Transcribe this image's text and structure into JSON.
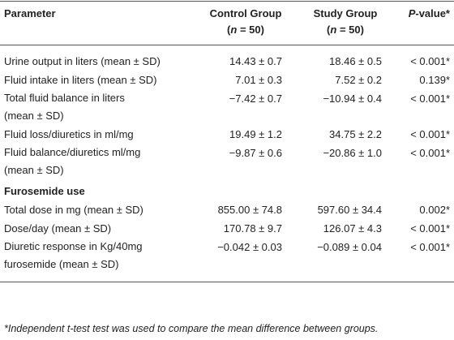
{
  "table": {
    "header": [
      {
        "lines": [
          [
            "Parameter"
          ]
        ]
      },
      {
        "lines": [
          [
            "Control Group"
          ],
          [
            "(",
            "n",
            " = 50)"
          ]
        ]
      },
      {
        "lines": [
          [
            "Study Group"
          ],
          [
            "(",
            "n",
            " = 50)"
          ]
        ]
      },
      {
        "lines": [
          [
            "P",
            "-value*"
          ]
        ]
      }
    ],
    "rows": [
      {
        "label": [
          "Urine output in liters (mean ± SD)"
        ],
        "cells": [
          "14.43 ± 0.7",
          "18.46 ± 0.5",
          "< 0.001*"
        ]
      },
      {
        "label": [
          "Fluid intake in liters (mean ± SD)"
        ],
        "cells": [
          "7.01 ± 0.3",
          "7.52 ± 0.2",
          "0.139*"
        ]
      },
      {
        "label": [
          "Total fluid balance in liters",
          "(mean ± SD)"
        ],
        "cells": [
          "−7.42 ± 0.7",
          "−10.94 ± 0.4",
          "< 0.001*"
        ]
      },
      {
        "label": [
          "Fluid loss/diuretics in ml/mg"
        ],
        "cells": [
          "19.49 ± 1.2",
          "34.75 ± 2.2",
          "< 0.001*"
        ]
      },
      {
        "label": [
          "Fluid balance/diuretics ml/mg",
          "(mean ± SD)"
        ],
        "cells": [
          "−9.87 ± 0.6",
          "−20.86 ± 1.0",
          "< 0.001*"
        ]
      },
      {
        "section": "Furosemide use"
      },
      {
        "label": [
          "Total dose in mg (mean ± SD)"
        ],
        "cells": [
          "855.00 ± 74.8",
          "597.60 ± 34.4",
          "0.002*"
        ]
      },
      {
        "label": [
          "Dose/day (mean ± SD)"
        ],
        "cells": [
          "170.78 ± 9.7",
          "126.07 ± 4.3",
          "< 0.001*"
        ]
      },
      {
        "label": [
          "Diuretic response in Kg/40mg",
          "furosemide (mean ± SD)"
        ],
        "cells": [
          "−0.042 ± 0.03",
          "−0.089 ± 0.04",
          "< 0.001*"
        ]
      }
    ],
    "footnote": "*Independent t-test test was used to compare the mean difference between groups."
  }
}
